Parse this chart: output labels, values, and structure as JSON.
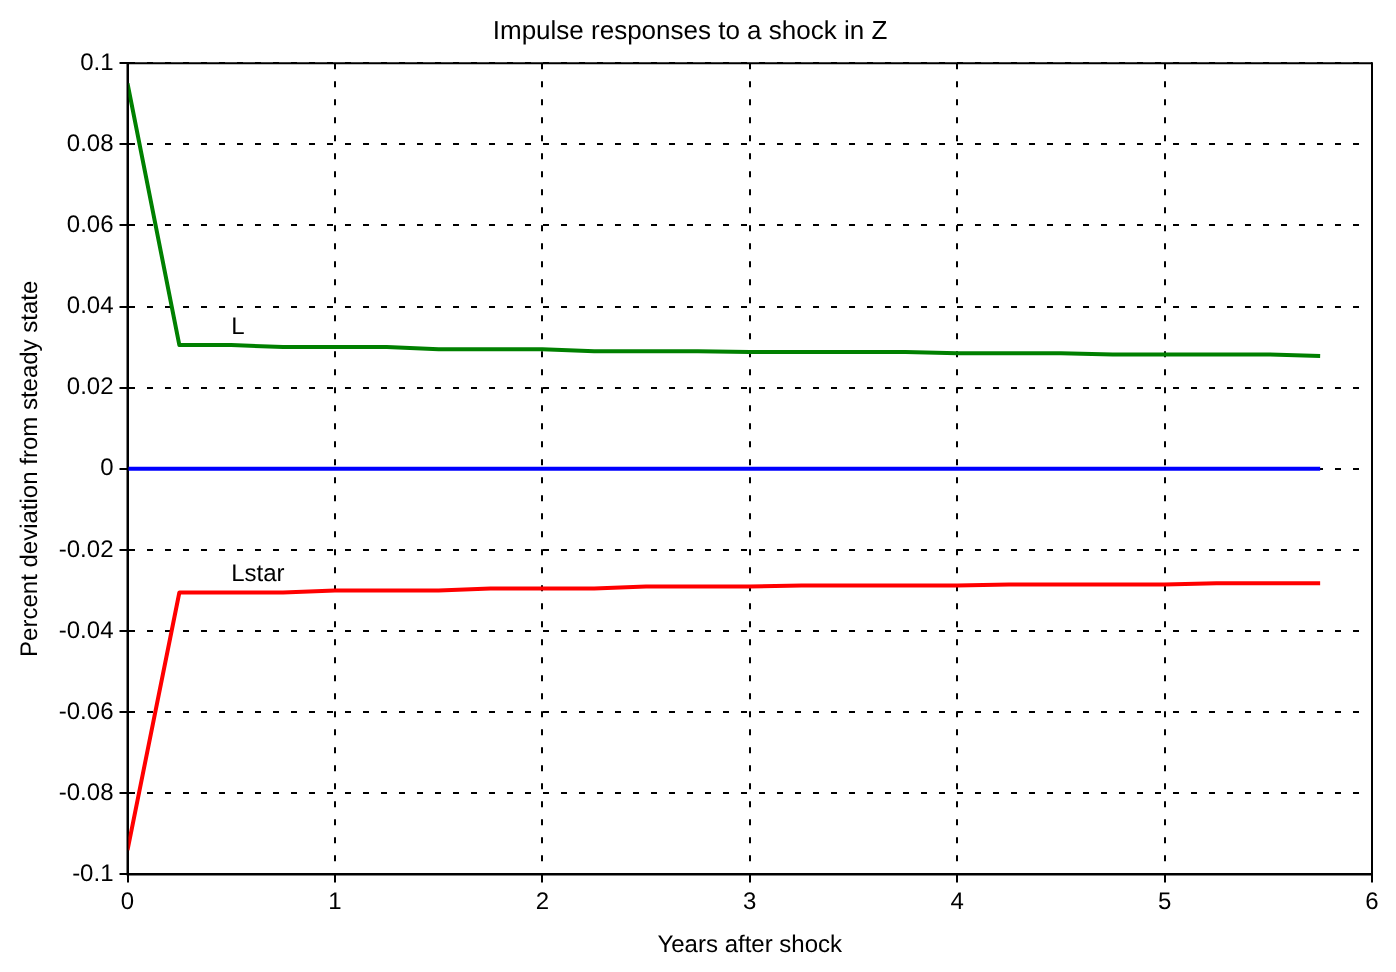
{
  "chart_data": {
    "type": "line",
    "title": "Impulse responses to a shock in Z",
    "xlabel": "Years after shock",
    "ylabel": "Percent deviation from steady state",
    "x": [
      0,
      0.25,
      0.5,
      0.75,
      1,
      1.25,
      1.5,
      1.75,
      2,
      2.25,
      2.5,
      2.75,
      3,
      3.25,
      3.5,
      3.75,
      4,
      4.25,
      4.5,
      4.75,
      5,
      5.25,
      5.5,
      5.75
    ],
    "series": [
      {
        "name": "L",
        "color": "#008000",
        "values": [
          0.095,
          0.0305,
          0.0305,
          0.03,
          0.03,
          0.03,
          0.0295,
          0.0295,
          0.0295,
          0.029,
          0.029,
          0.029,
          0.0288,
          0.0288,
          0.0288,
          0.0288,
          0.0285,
          0.0285,
          0.0285,
          0.0282,
          0.0282,
          0.0282,
          0.0282,
          0.0278
        ]
      },
      {
        "name": "Lstar",
        "color": "#ff0000",
        "values": [
          -0.094,
          -0.0305,
          -0.0305,
          -0.0305,
          -0.03,
          -0.03,
          -0.03,
          -0.0295,
          -0.0295,
          -0.0295,
          -0.029,
          -0.029,
          -0.029,
          -0.0288,
          -0.0288,
          -0.0288,
          -0.0288,
          -0.0285,
          -0.0285,
          -0.0285,
          -0.0285,
          -0.0282,
          -0.0282,
          -0.0282
        ]
      },
      {
        "color": "#0000ff",
        "values": [
          0,
          0,
          0,
          0,
          0,
          0,
          0,
          0,
          0,
          0,
          0,
          0,
          0,
          0,
          0,
          0,
          0,
          0,
          0,
          0,
          0,
          0,
          0,
          0
        ]
      }
    ],
    "xlim": [
      0,
      6
    ],
    "xticks": [
      0,
      1,
      2,
      3,
      4,
      5,
      6
    ],
    "ylim": [
      -0.1,
      0.1
    ],
    "yticks": [
      -0.1,
      -0.08,
      -0.06,
      -0.04,
      -0.02,
      0,
      0.02,
      0.04,
      0.06,
      0.08,
      0.1
    ],
    "grid": true,
    "legend": false,
    "line_style": "solid",
    "marker": "none"
  }
}
